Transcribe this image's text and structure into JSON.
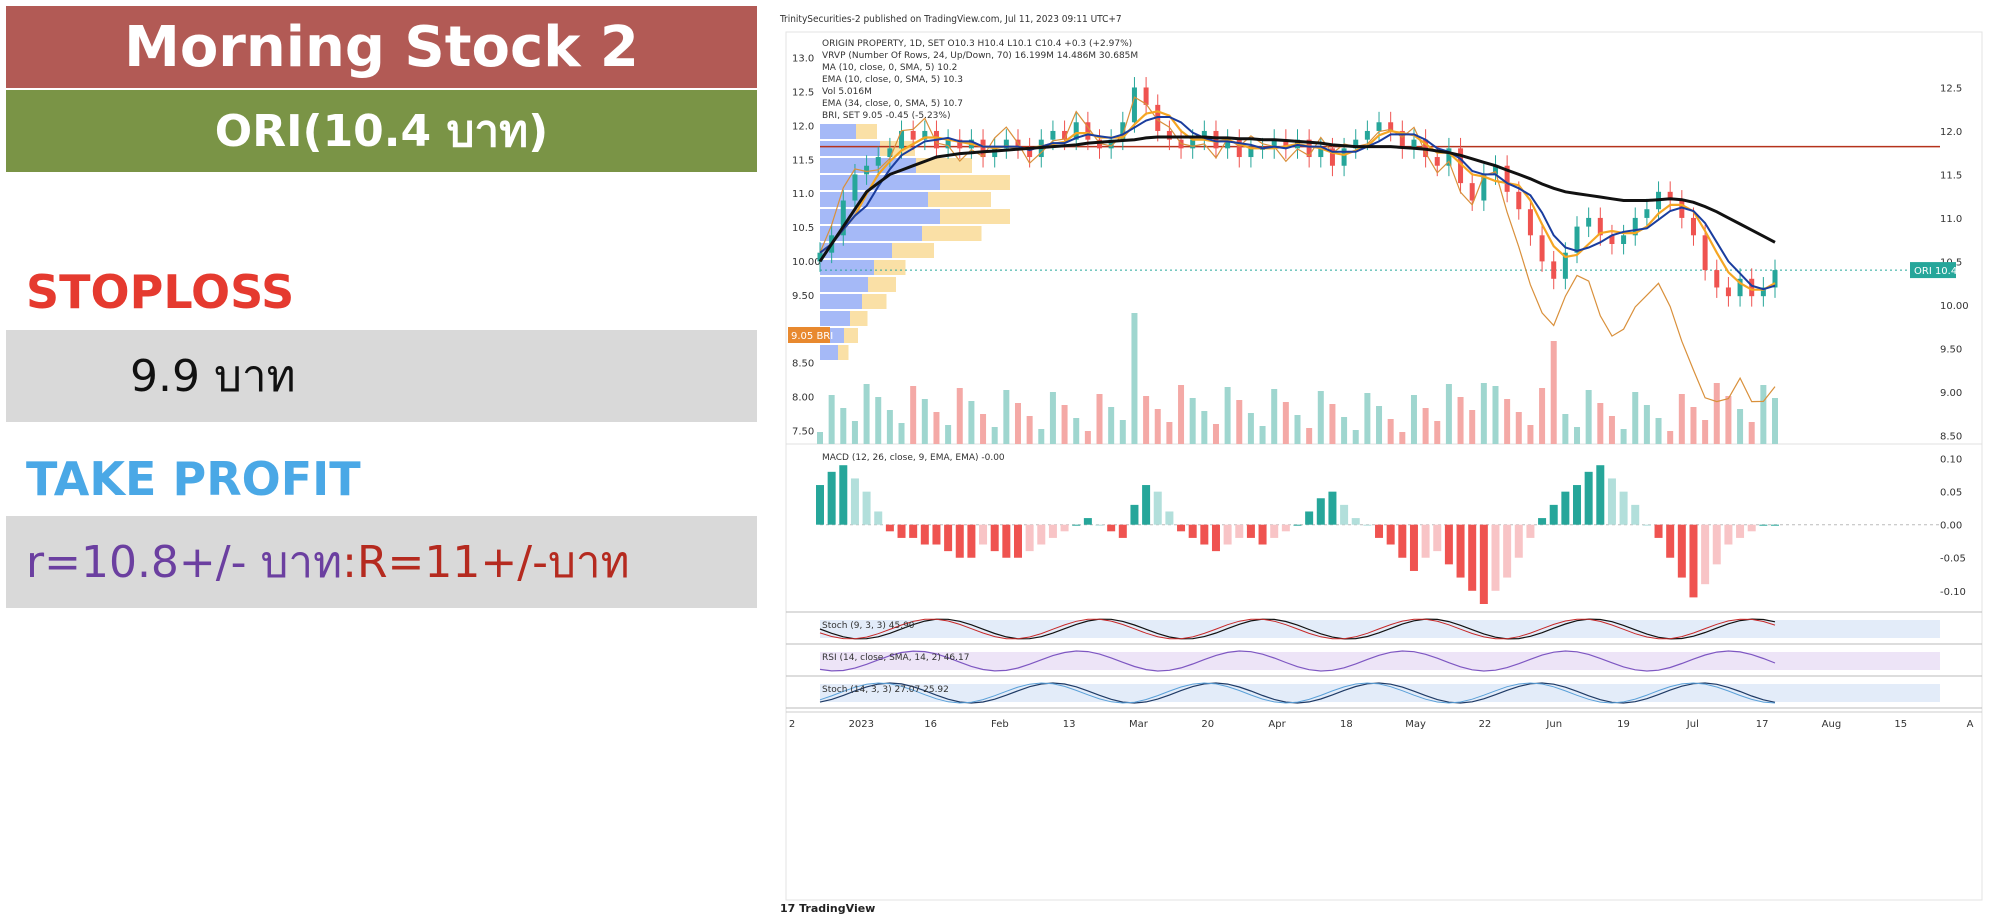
{
  "header": {
    "title": "Morning Stock 2",
    "subtitle": "ORI(10.4 บาท)"
  },
  "stoploss": {
    "label": "STOPLOSS",
    "value": "9.9 บาท"
  },
  "take_profit": {
    "label": "TAKE PROFIT",
    "value_r": "r=10.8+/- บาท",
    "value_R": ":R=11+/-บาท"
  },
  "chart": {
    "published": "TrinitySecurities-2 published on TradingView.com, Jul 11, 2023 09:11 UTC+7",
    "footer": "TradingView",
    "legend": [
      "ORIGIN PROPERTY, 1D, SET  O10.3  H10.4  L10.1  C10.4  +0.3 (+2.97%)",
      "VRVP (Number Of Rows, 24, Up/Down, 70)  16.199M  14.486M  30.685M",
      "MA (10, close, 0, SMA, 5)  10.2",
      "EMA (10, close, 0, SMA, 5)  10.3",
      "Vol  5.016M",
      "EMA (34, close, 0, SMA, 5)  10.7",
      "BRI, SET  9.05  -0.45 (-5.23%)"
    ],
    "macd_label": "MACD (12, 26, close, 9, EMA, EMA)  -0.00",
    "stoch1_label": "Stoch (9, 3, 3)  45.90",
    "rsi_label": "RSI (14, close, SMA, 14, 2)  46.17",
    "stoch2_label": "Stoch (14, 3, 3)  27.07  25.92",
    "last_price_tag": "ORI  10.4",
    "bri_tag": "9.05  BRI",
    "colors": {
      "up": "#26a69a",
      "down": "#ef5350",
      "ma10": "#1a3d9e",
      "ema10": "#f5a623",
      "ema34": "#111111",
      "bri": "#d9903b",
      "resistance": "#b5331c"
    }
  },
  "chart_data": {
    "type": "line",
    "x_ticks": [
      "2",
      "2023",
      "16",
      "Feb",
      "13",
      "Mar",
      "20",
      "Apr",
      "18",
      "May",
      "22",
      "Jun",
      "19",
      "Jul",
      "17",
      "Aug",
      "15",
      "A"
    ],
    "right_axis": {
      "ticks": [
        12.5,
        12.0,
        11.5,
        11.0,
        10.5,
        10.0,
        9.5,
        9.0,
        8.5
      ],
      "ylim": [
        8.4,
        13.0
      ]
    },
    "left_axis": {
      "ticks": [
        13.0,
        12.5,
        12.0,
        11.5,
        11.0,
        10.5,
        10.0,
        9.5,
        8.5,
        8.0,
        7.5
      ],
      "ylim": [
        7.3,
        13.2
      ]
    },
    "resistance_level": 11.82,
    "last_close": 10.4,
    "series": [
      {
        "name": "ORI close",
        "values": [
          10.6,
          10.8,
          11.2,
          11.5,
          11.6,
          11.7,
          11.8,
          12.0,
          11.9,
          12.0,
          11.8,
          11.9,
          11.8,
          11.9,
          11.7,
          11.8,
          11.9,
          11.8,
          11.7,
          11.9,
          12.0,
          11.9,
          12.1,
          11.9,
          11.8,
          11.9,
          12.1,
          12.5,
          12.3,
          12.0,
          11.9,
          11.8,
          11.9,
          12.0,
          11.8,
          11.9,
          11.7,
          11.8,
          11.8,
          11.9,
          11.8,
          11.9,
          11.7,
          11.8,
          11.6,
          11.8,
          11.9,
          12.0,
          12.1,
          12.0,
          11.8,
          11.9,
          11.7,
          11.6,
          11.8,
          11.4,
          11.2,
          11.5,
          11.6,
          11.3,
          11.1,
          10.8,
          10.5,
          10.3,
          10.6,
          10.9,
          11.0,
          10.8,
          10.7,
          10.8,
          11.0,
          11.1,
          11.3,
          11.2,
          11.0,
          10.8,
          10.4,
          10.2,
          10.1,
          10.3,
          10.1,
          10.2,
          10.4
        ]
      },
      {
        "name": "EMA34",
        "values": [
          10.5,
          10.7,
          10.9,
          11.1,
          11.3,
          11.4,
          11.5,
          11.55,
          11.6,
          11.65,
          11.7,
          11.72,
          11.74,
          11.75,
          11.76,
          11.77,
          11.78,
          11.79,
          11.8,
          11.81,
          11.82,
          11.83,
          11.84,
          11.86,
          11.87,
          11.88,
          11.89,
          11.9,
          11.92,
          11.93,
          11.93,
          11.93,
          11.93,
          11.93,
          11.92,
          11.92,
          11.91,
          11.91,
          11.9,
          11.9,
          11.89,
          11.88,
          11.87,
          11.86,
          11.84,
          11.83,
          11.82,
          11.82,
          11.82,
          11.82,
          11.81,
          11.8,
          11.79,
          11.77,
          11.75,
          11.72,
          11.68,
          11.64,
          11.6,
          11.55,
          11.5,
          11.45,
          11.39,
          11.34,
          11.3,
          11.28,
          11.26,
          11.24,
          11.22,
          11.2,
          11.2,
          11.2,
          11.21,
          11.22,
          11.21,
          11.18,
          11.13,
          11.07,
          11.0,
          10.93,
          10.86,
          10.79,
          10.72
        ]
      }
    ],
    "macd_histogram": [
      0.06,
      0.08,
      0.09,
      0.07,
      0.05,
      0.02,
      -0.01,
      -0.02,
      -0.02,
      -0.03,
      -0.03,
      -0.04,
      -0.05,
      -0.05,
      -0.03,
      -0.04,
      -0.05,
      -0.05,
      -0.04,
      -0.03,
      -0.02,
      -0.01,
      0.0,
      0.01,
      0.0,
      -0.01,
      -0.02,
      0.03,
      0.06,
      0.05,
      0.02,
      -0.01,
      -0.02,
      -0.03,
      -0.04,
      -0.03,
      -0.02,
      -0.02,
      -0.03,
      -0.02,
      -0.01,
      0.0,
      0.02,
      0.04,
      0.05,
      0.03,
      0.01,
      0.0,
      -0.02,
      -0.03,
      -0.05,
      -0.07,
      -0.05,
      -0.04,
      -0.06,
      -0.08,
      -0.1,
      -0.12,
      -0.1,
      -0.08,
      -0.05,
      -0.02,
      0.01,
      0.03,
      0.05,
      0.06,
      0.08,
      0.09,
      0.07,
      0.05,
      0.03,
      0.0,
      -0.02,
      -0.05,
      -0.08,
      -0.11,
      -0.09,
      -0.06,
      -0.03,
      -0.02,
      -0.01,
      0.0,
      0.0
    ],
    "macd_axis": {
      "ticks": [
        0.1,
        0.05,
        0.0,
        -0.05,
        -0.1
      ],
      "ylim": [
        -0.12,
        0.11
      ]
    }
  }
}
